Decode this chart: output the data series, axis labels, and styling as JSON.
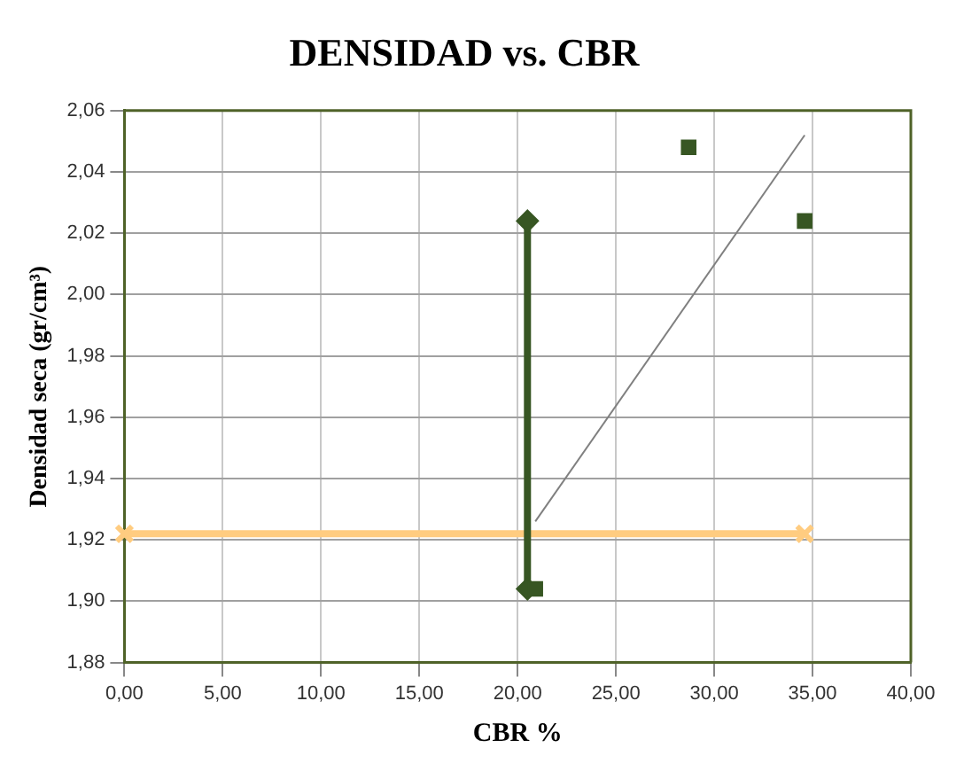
{
  "chart_data": {
    "type": "scatter",
    "title": "DENSIDAD vs. CBR",
    "xlabel": "CBR %",
    "ylabel": "Densidad seca (gr/cm³)",
    "xlim": [
      0,
      40
    ],
    "ylim": [
      1.88,
      2.06
    ],
    "xticks": [
      {
        "value": 0,
        "label": "0,00"
      },
      {
        "value": 5,
        "label": "5,00"
      },
      {
        "value": 10,
        "label": "10,00"
      },
      {
        "value": 15,
        "label": "15,00"
      },
      {
        "value": 20,
        "label": "20,00"
      },
      {
        "value": 25,
        "label": "25,00"
      },
      {
        "value": 30,
        "label": "30,00"
      },
      {
        "value": 35,
        "label": "35,00"
      },
      {
        "value": 40,
        "label": "40,00"
      }
    ],
    "yticks": [
      {
        "value": 1.88,
        "label": "1,88"
      },
      {
        "value": 1.9,
        "label": "1,90"
      },
      {
        "value": 1.92,
        "label": "1,92"
      },
      {
        "value": 1.94,
        "label": "1,94"
      },
      {
        "value": 1.96,
        "label": "1,96"
      },
      {
        "value": 1.98,
        "label": "1,98"
      },
      {
        "value": 2.0,
        "label": "2,00"
      },
      {
        "value": 2.02,
        "label": "2,02"
      },
      {
        "value": 2.04,
        "label": "2,04"
      },
      {
        "value": 2.06,
        "label": "2,06"
      }
    ],
    "grid": true,
    "legend": false,
    "series": [
      {
        "marker": "square",
        "color": "#375623",
        "x": [
          20.9,
          28.7,
          34.6
        ],
        "values": [
          1.904,
          2.048,
          2.024
        ]
      },
      {
        "type": "line",
        "marker": "diamond",
        "color": "#375623",
        "x": [
          20.5,
          20.5
        ],
        "values": [
          1.904,
          2.024
        ]
      },
      {
        "type": "line",
        "marker": "cross",
        "color": "#ffcc80",
        "x": [
          0,
          34.6
        ],
        "values": [
          1.922,
          1.922
        ]
      },
      {
        "type": "line",
        "marker": "none",
        "color": "#808080",
        "x": [
          20.9,
          34.6
        ],
        "values": [
          1.926,
          2.052
        ]
      }
    ]
  }
}
